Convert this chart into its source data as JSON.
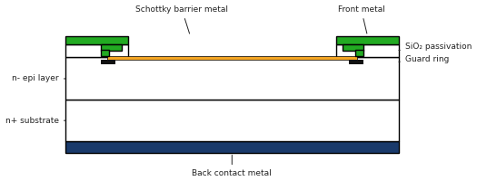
{
  "fig_width": 5.25,
  "fig_height": 2.0,
  "dpi": 100,
  "colors": {
    "outline": "#000000",
    "white": "#ffffff",
    "green": "#22aa22",
    "orange": "#f5a623",
    "blue": "#1a3a6b",
    "black": "#111111",
    "gray_line": "#555555"
  },
  "labels": {
    "schottky": "Schottky barrier metal",
    "front_metal": "Front metal",
    "sio2": "SiO₂ passivation",
    "guard_ring": "Guard ring",
    "n_epi": "n- epi layer",
    "n_sub": "n+ substrate",
    "back_contact": "Back contact metal"
  }
}
